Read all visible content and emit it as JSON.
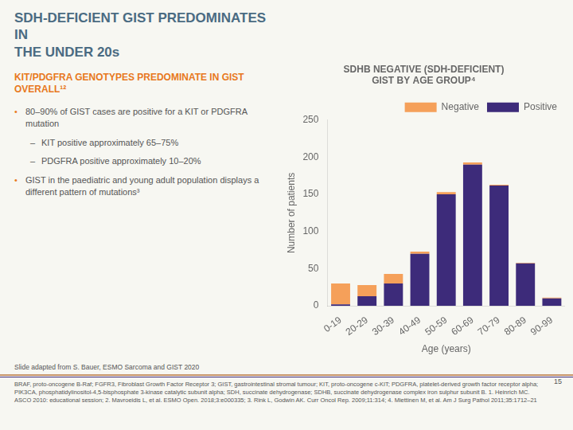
{
  "chart_data": {
    "type": "bar",
    "title": "SDHB NEGATIVE (SDH-DEFICIENT)\nGIST BY AGE GROUP⁴",
    "xlabel": "Age (years)",
    "ylabel": "Number of patients",
    "categories": [
      "0-19",
      "20-29",
      "30-39",
      "40-49",
      "50-59",
      "60-69",
      "70-79",
      "80-89",
      "90-99"
    ],
    "series": [
      {
        "name": "Positive",
        "color": "#3d2b7a",
        "values": [
          2,
          13,
          30,
          70,
          150,
          190,
          162,
          57,
          10
        ]
      },
      {
        "name": "Negative",
        "color": "#f5a05a",
        "values": [
          28,
          15,
          13,
          3,
          3,
          3,
          1,
          1,
          1
        ]
      }
    ],
    "stacked": true,
    "ylim": [
      0,
      250
    ],
    "yticks": [
      0,
      50,
      100,
      150,
      200,
      250
    ],
    "grid": false,
    "legend": "upper right",
    "annotations": [
      "SDH-DEFICIENT GIST PREDOMINATES IN\nTHE UNDER 20s",
      "KIT/PDGFRA GENOTYPES PREDOMINATE IN GIST OVERALL¹²",
      "80–90% of GIST cases are positive for a KIT or PDGFRA mutation",
      "KIT positive approximately 65–75%",
      "PDGFRA positive approximately 10–20%",
      "GIST in the paediatric and young adult population displays a different pattern of mutations³",
      "Slide adapted from S. Bauer, ESMO Sarcoma and GIST 2020",
      "BRAF, proto-oncogene B-Raf; FGFR3, Fibroblast Growth Factor Receptor 3; GIST, gastrointestinal stromal tumour; KIT, proto-oncogene c-KIT; PDGFRA, platelet-derived growth factor receptor alpha; PIK3CA, phosphatidylinositol-4,5-bisphosphate 3-kinase catalytic subunit alpha; SDH, succinate dehydrogenase; SDHB, succinate dehydrogenase complex iron sulphur subunit B. 1. Heinrich MC. ASCO 2010: educational session; 2. Mavroeidis L, et al. ESMO Open. 2018;3:e000335; 3. Rink L, Godwin AK. Curr Oncol Rep. 2009;11:314; 4. Miettinen M, et al. Am J Surg Pathol 2011;35:1712–21",
      "15"
    ]
  }
}
